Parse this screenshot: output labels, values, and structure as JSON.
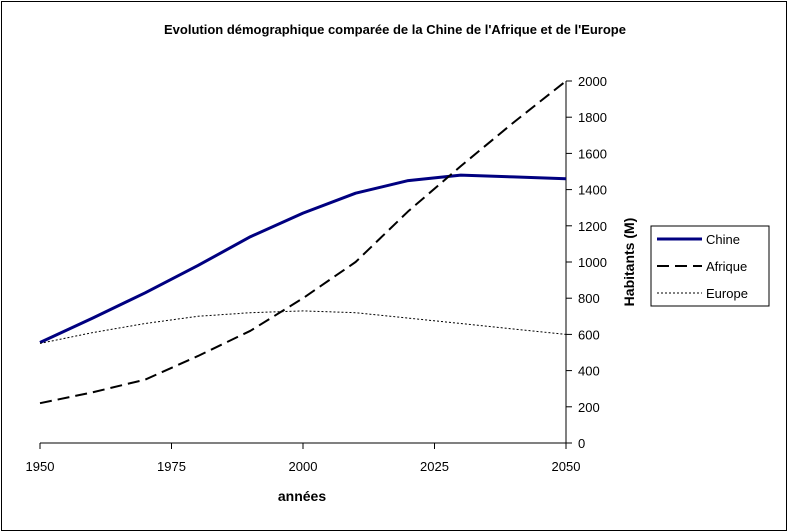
{
  "chart_data": {
    "type": "line",
    "title": "Evolution démographique comparée de la Chine de l'Afrique et de l'Europe",
    "xlabel": "années",
    "ylabel": "Habitants (M)",
    "x": [
      1950,
      1960,
      1970,
      1980,
      1990,
      2000,
      2010,
      2020,
      2030,
      2040,
      2050
    ],
    "xlim": [
      1950,
      2050
    ],
    "ylim": [
      0,
      2000
    ],
    "x_ticks": [
      "1950",
      "1975",
      "2000",
      "2025",
      "2050"
    ],
    "y_ticks": [
      "0",
      "200",
      "400",
      "600",
      "800",
      "1000",
      "1200",
      "1400",
      "1600",
      "1800",
      "2000"
    ],
    "y_axis_side": "right",
    "grid": false,
    "legend_position": "right",
    "series": [
      {
        "name": "Chine",
        "color": "#000080",
        "style": "solid-thick",
        "values": [
          555,
          690,
          830,
          980,
          1140,
          1270,
          1380,
          1450,
          1480,
          1470,
          1460
        ]
      },
      {
        "name": "Afrique",
        "color": "#000000",
        "style": "dashed",
        "values": [
          220,
          280,
          350,
          480,
          620,
          800,
          1000,
          1280,
          1530,
          1770,
          2000
        ]
      },
      {
        "name": "Europe",
        "color": "#000000",
        "style": "dotted",
        "values": [
          550,
          610,
          660,
          700,
          720,
          730,
          720,
          690,
          660,
          630,
          600
        ]
      }
    ]
  }
}
